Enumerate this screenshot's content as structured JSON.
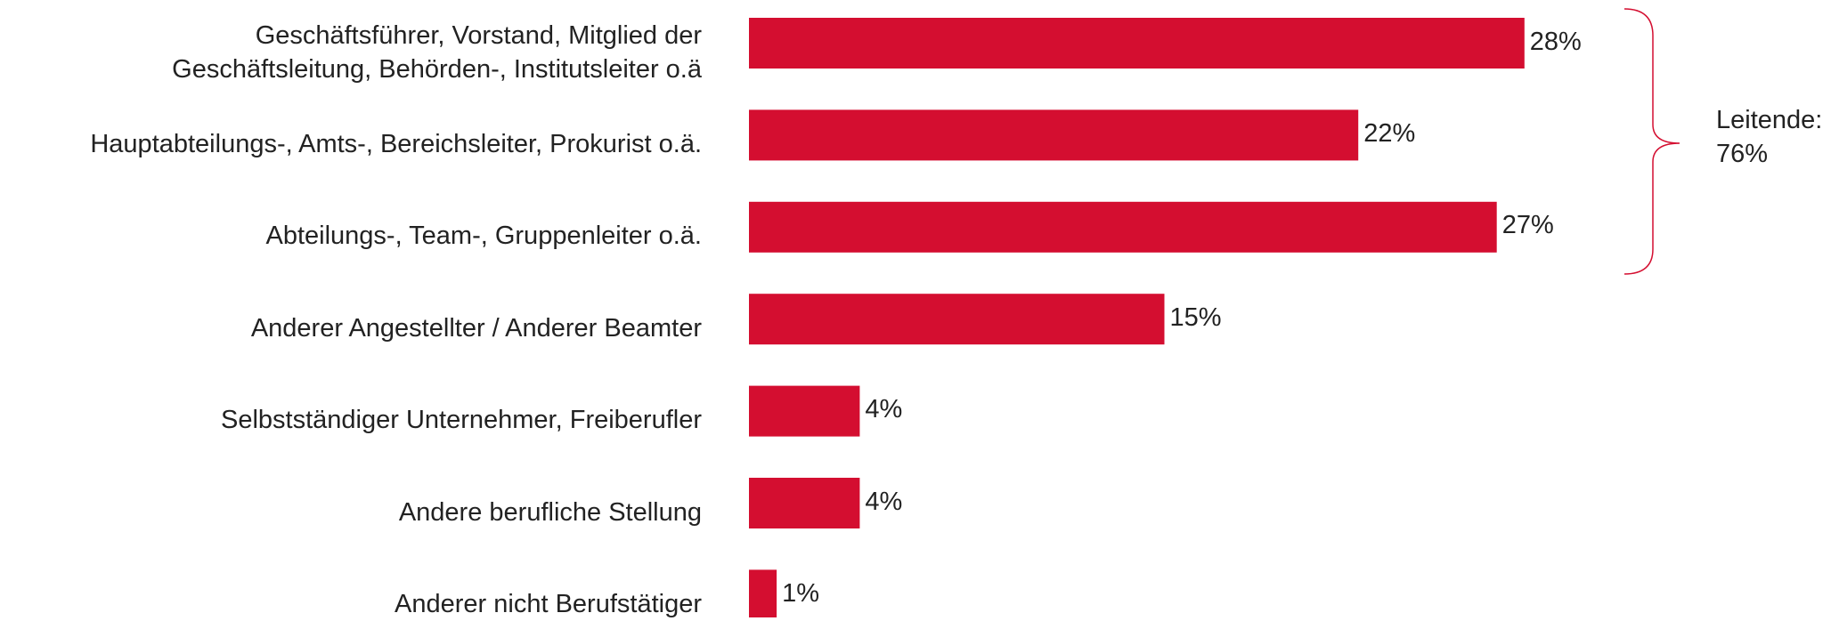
{
  "chart_data": {
    "type": "bar",
    "orientation": "horizontal",
    "color": "#d40e30",
    "categories": [
      "Geschäftsführer, Vorstand, Mitglied der\nGeschäftsleitung, Behörden-, Institutsleiter o.ä",
      "Hauptabteilungs-, Amts-, Bereichsleiter, Prokurist o.ä.",
      "Abteilungs-, Team-, Gruppenleiter o.ä.",
      "Anderer Angestellter / Anderer Beamter",
      "Selbstständiger Unternehmer, Freiberufler",
      "Andere berufliche Stellung",
      "Anderer nicht Berufstätiger"
    ],
    "values": [
      28,
      22,
      27,
      15,
      4,
      4,
      1
    ],
    "value_labels": [
      "28%",
      "22%",
      "27%",
      "15%",
      "4%",
      "4%",
      "1%"
    ],
    "annotation": "Leitende:\n76%"
  }
}
